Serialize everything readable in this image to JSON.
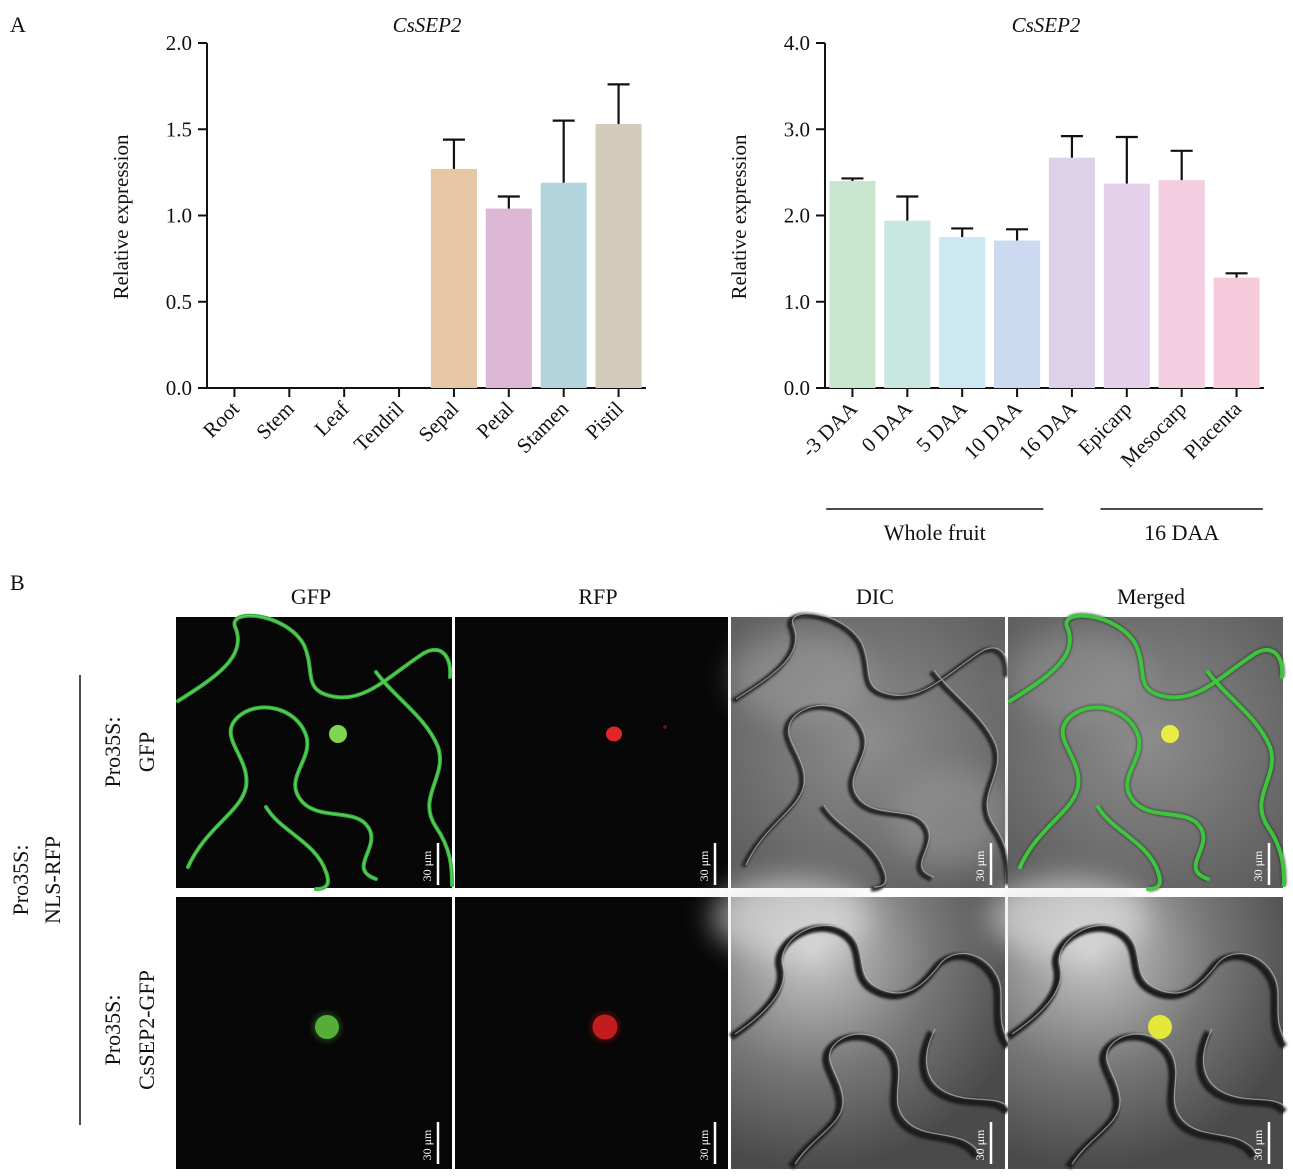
{
  "panel_a_label": "A",
  "panel_b_label": "B",
  "chart_data": [
    {
      "type": "bar",
      "title": "CsSEP2",
      "ylabel": "Relative expression",
      "xlabel": "",
      "ylim": [
        0,
        2.0
      ],
      "yticks": [
        "0.0",
        "0.5",
        "1.0",
        "1.5",
        "2.0"
      ],
      "categories": [
        "Root",
        "Stem",
        "Leaf",
        "Tendril",
        "Sepal",
        "Petal",
        "Stamen",
        "Pistil"
      ],
      "values": [
        0,
        0,
        0,
        0,
        1.27,
        1.04,
        1.19,
        1.53
      ],
      "errors": [
        0,
        0,
        0,
        0,
        0.17,
        0.07,
        0.36,
        0.23
      ],
      "colors": [
        "#e6c8a6",
        "#e6c8a6",
        "#e6c8a6",
        "#e6c8a6",
        "#e6c8a6",
        "#ddb8d6",
        "#b3d4dc",
        "#d3cbbb"
      ],
      "grid": false
    },
    {
      "type": "bar",
      "title": "CsSEP2",
      "ylabel": "Relative expression",
      "xlabel": "",
      "ylim": [
        0,
        4.0
      ],
      "yticks": [
        "0.0",
        "1.0",
        "2.0",
        "3.0",
        "4.0"
      ],
      "categories": [
        "-3 DAA",
        "0 DAA",
        "5 DAA",
        "10 DAA",
        "16 DAA",
        "Epicarp",
        "Mesocarp",
        "Placenta"
      ],
      "values": [
        2.4,
        1.94,
        1.75,
        1.71,
        2.67,
        2.37,
        2.41,
        1.28
      ],
      "errors": [
        0.03,
        0.28,
        0.1,
        0.13,
        0.25,
        0.54,
        0.34,
        0.05
      ],
      "colors": [
        "#c9e6cf",
        "#c8e7e0",
        "#cbe8f3",
        "#cbdaf0",
        "#ddd1ea",
        "#e4d0ea",
        "#f3cde0",
        "#f6cadb"
      ],
      "groups": [
        {
          "label": "Whole fruit",
          "from": 0,
          "to": 3
        },
        {
          "label": "16 DAA",
          "from": 5,
          "to": 7
        }
      ],
      "grid": false
    }
  ],
  "microscopy": {
    "columns": [
      "GFP",
      "RFP",
      "DIC",
      "Merged"
    ],
    "outer_row_label": [
      "Pro35S:",
      "NLS-RFP"
    ],
    "rows": [
      {
        "label": [
          "Pro35S:",
          "GFP"
        ]
      },
      {
        "label": [
          "Pro35S:",
          "CsSEP2-GFP"
        ]
      }
    ],
    "scale_bar": "30 μm"
  }
}
